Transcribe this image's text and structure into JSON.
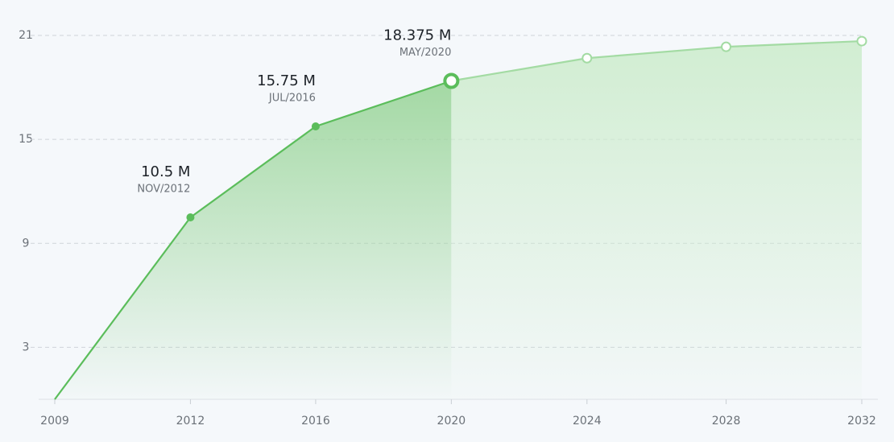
{
  "chart_data": {
    "type": "line",
    "x": [
      2009,
      2012.9,
      2016.5,
      2020.4,
      2024.3,
      2028.3,
      2032.2
    ],
    "xlim": [
      2009,
      2032.2
    ],
    "xticks": [
      2009,
      {
        "value": 2012.9,
        "label": "2012"
      },
      {
        "value": 2016.5,
        "label": "2016"
      },
      {
        "value": 2020.4,
        "label": "2020"
      },
      {
        "value": 2024.3,
        "label": "2024"
      },
      {
        "value": 2028.3,
        "label": "2028"
      },
      {
        "value": 2032.2,
        "label": "2032"
      }
    ],
    "ylim": [
      0,
      21
    ],
    "yticks": [
      3,
      9,
      15,
      21
    ],
    "grid": true,
    "series": [
      {
        "color": "#5bbd5b",
        "marker": "filled",
        "values": [
          0,
          10.5,
          15.75,
          18.375,
          null,
          null,
          null
        ],
        "value_labels": [
          null,
          "10.5 M",
          "15.75 M",
          "18.375 M",
          null,
          null,
          null
        ],
        "point_labels": [
          null,
          "NOV/2012",
          "JUL/2016",
          "MAY/2020",
          null,
          null,
          null
        ]
      },
      {
        "color": "#a3dba3",
        "marker": "hollow",
        "values": [
          null,
          null,
          null,
          18.375,
          19.6875,
          20.34375,
          20.671875
        ]
      }
    ]
  }
}
